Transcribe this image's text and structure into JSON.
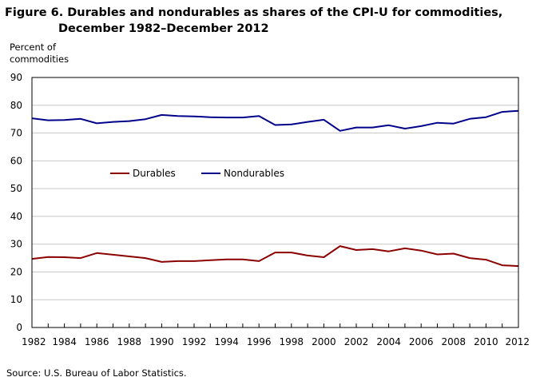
{
  "chart_data": {
    "type": "line",
    "title_line1": "Figure 6. Durables and nondurables as shares of the CPI-U for commodities,",
    "title_line2": "December 1982–December 2012",
    "ylabel_line1": "Percent of",
    "ylabel_line2": "commodities",
    "source": "Source: U.S. Bureau of Labor Statistics.",
    "x": [
      1982,
      1983,
      1984,
      1985,
      1986,
      1987,
      1988,
      1989,
      1990,
      1991,
      1992,
      1993,
      1994,
      1995,
      1996,
      1997,
      1998,
      1999,
      2000,
      2001,
      2002,
      2003,
      2004,
      2005,
      2006,
      2007,
      2008,
      2009,
      2010,
      2011,
      2012
    ],
    "xticks": [
      "1982",
      "1984",
      "1986",
      "1988",
      "1990",
      "1992",
      "1994",
      "1996",
      "1998",
      "2000",
      "2002",
      "2004",
      "2006",
      "2008",
      "2010",
      "2012"
    ],
    "yticks": [
      "0",
      "10",
      "20",
      "30",
      "40",
      "50",
      "60",
      "70",
      "80",
      "90"
    ],
    "ylim": [
      0,
      90
    ],
    "xlim": [
      1982,
      2012
    ],
    "grid": true,
    "legend_position": "center-left",
    "series": [
      {
        "name": "Durables",
        "color": "#8b0000",
        "values": [
          24.7,
          25.4,
          25.3,
          25.0,
          26.8,
          26.2,
          25.6,
          25.0,
          23.6,
          23.9,
          23.9,
          24.2,
          24.5,
          24.5,
          23.9,
          27.0,
          27.0,
          25.9,
          25.3,
          29.3,
          27.9,
          28.2,
          27.4,
          28.5,
          27.7,
          26.3,
          26.6,
          25.0,
          24.4,
          22.4,
          22.1
        ]
      },
      {
        "name": "Nondurables",
        "color": "#00008b",
        "values": [
          75.3,
          74.6,
          74.7,
          75.1,
          73.5,
          74.0,
          74.3,
          75.0,
          76.5,
          76.1,
          76.0,
          75.7,
          75.6,
          75.6,
          76.1,
          72.9,
          73.1,
          74.0,
          74.8,
          70.8,
          72.0,
          72.0,
          72.8,
          71.6,
          72.5,
          73.7,
          73.4,
          75.1,
          75.7,
          77.6,
          78.0
        ]
      }
    ]
  }
}
